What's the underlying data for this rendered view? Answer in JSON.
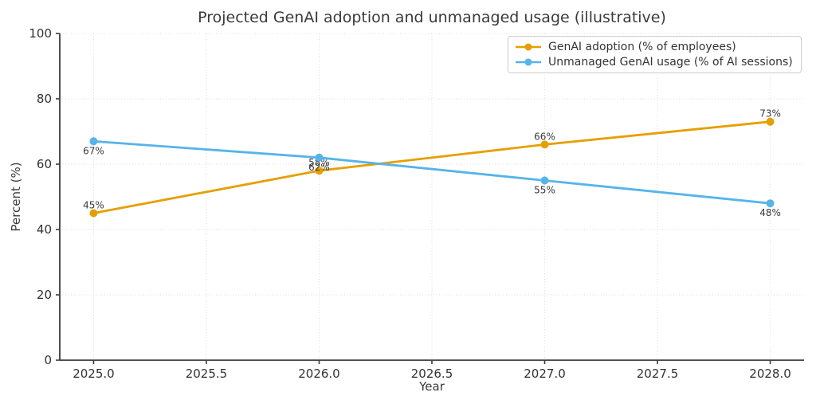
{
  "chart_data": {
    "type": "line",
    "title": "Projected GenAI adoption and unmanaged usage (illustrative)",
    "xlabel": "Year",
    "ylabel": "Percent (%)",
    "x": [
      2025,
      2026,
      2027,
      2028
    ],
    "xlim": [
      2024.85,
      2028.15
    ],
    "ylim": [
      0,
      100
    ],
    "xticks": {
      "values": [
        2025.0,
        2025.5,
        2026.0,
        2026.5,
        2027.0,
        2027.5,
        2028.0
      ],
      "labels": [
        "2025.0",
        "2025.5",
        "2026.0",
        "2026.5",
        "2027.0",
        "2027.5",
        "2028.0"
      ]
    },
    "yticks": {
      "values": [
        0,
        20,
        40,
        60,
        80,
        100
      ],
      "labels": [
        "0",
        "20",
        "40",
        "60",
        "80",
        "100"
      ]
    },
    "grid": true,
    "grid_style": "dotted",
    "legend_position": "upper right",
    "series": [
      {
        "name": "GenAI adoption (% of employees)",
        "color": "#E69F00",
        "values": [
          45,
          58,
          66,
          73
        ],
        "point_labels": [
          "45%",
          "58%",
          "66%",
          "73%"
        ],
        "label_position": "above"
      },
      {
        "name": "Unmanaged GenAI usage (% of AI sessions)",
        "color": "#56B4E9",
        "values": [
          67,
          62,
          55,
          48
        ],
        "point_labels": [
          "67%",
          "62%",
          "55%",
          "48%"
        ],
        "label_position": "below"
      }
    ]
  },
  "colors": {
    "background": "#FFFFFF",
    "grid": "#DCDCDC",
    "spine": "#3A3A3A",
    "tick_text": "#333333",
    "text": "#3A3A3A",
    "legend_border": "#CCCCCC"
  }
}
